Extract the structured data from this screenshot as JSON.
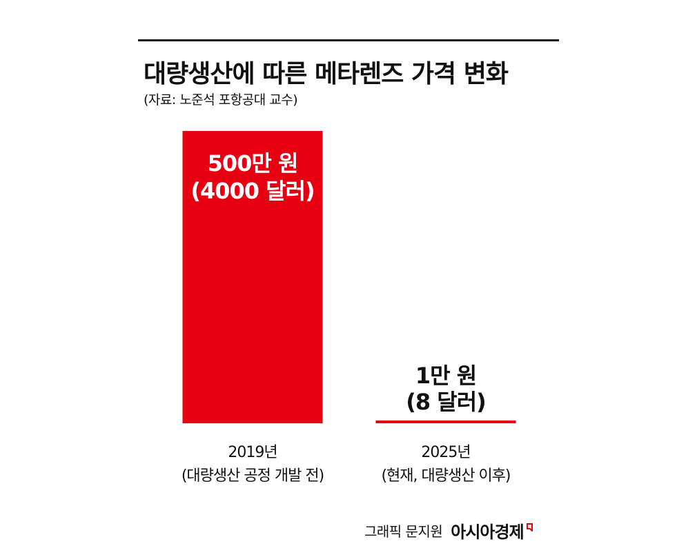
{
  "header": {
    "title": "대량생산에 따른 메타렌즈 가격 변화",
    "source": "(자료: 노준석 포항공대 교수)"
  },
  "credit": {
    "label": "그래픽 문지원",
    "brand": "아시아경제",
    "brand_icon": "brand-corner-icon",
    "brand_color": "#e60012"
  },
  "colors": {
    "bar": "#e60012",
    "text": "#111111",
    "bar_label_on_bar": "#ffffff"
  },
  "chart_data": {
    "type": "bar",
    "categories": [
      {
        "year": "2019년",
        "note": "(대량생산 공정 개발 전)"
      },
      {
        "year": "2025년",
        "note": "(현재, 대량생산 이후)"
      }
    ],
    "values": [
      5000000,
      10000
    ],
    "value_labels": [
      {
        "krw": "500만 원",
        "usd": "(4000 달러)"
      },
      {
        "krw": "1만 원",
        "usd": "(8 달러)"
      }
    ],
    "usd_values": [
      4000,
      8
    ],
    "unit": "원",
    "ylim": [
      0,
      5000000
    ],
    "grid": false,
    "legend": "none"
  }
}
